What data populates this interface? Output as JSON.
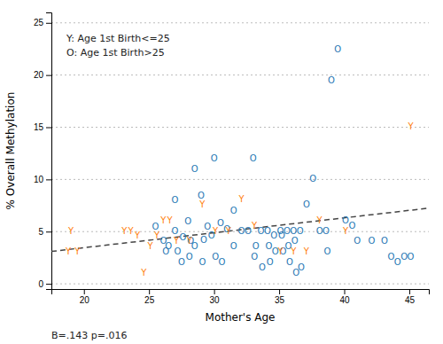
{
  "chart_data": {
    "type": "scatter",
    "xlabel": "Mother's Age",
    "ylabel": "% Overall Methylation",
    "xlim": [
      17.5,
      46.5
    ],
    "ylim": [
      -0.5,
      26
    ],
    "xticks": [
      20,
      25,
      30,
      35,
      40,
      45
    ],
    "yticks": [
      0,
      5,
      10,
      15,
      20,
      25
    ],
    "grid": true,
    "annotations": [
      "Y: Age 1st Birth<=25",
      "O: Age 1st Birth>25",
      "B=.143 p=.016"
    ],
    "regression": {
      "intercept": 0.6,
      "slope": 0.143,
      "line_style": "dashed"
    },
    "series": [
      {
        "marker": "O",
        "x": [
          27.0,
          28.5,
          29.0,
          29.5,
          28.0,
          30.0,
          31.5,
          31.0,
          30.5,
          29.2,
          29.8,
          28.5,
          28.2,
          27.6,
          27.0,
          26.5,
          26.1,
          26.3,
          25.5,
          27.2,
          27.5,
          28.1,
          29.1,
          30.1,
          30.6,
          31.5,
          32.1,
          32.6,
          33.0,
          33.6,
          34.1,
          34.6,
          34.2,
          33.2,
          33.1,
          33.7,
          34.3,
          35.1,
          35.6,
          35.2,
          34.7,
          35.3,
          35.7,
          36.1,
          36.6,
          36.2,
          35.8,
          36.3,
          36.7,
          37.1,
          37.6,
          38.1,
          38.6,
          38.7,
          39.0,
          39.5,
          40.1,
          40.6,
          41.0,
          42.1,
          43.1,
          43.6,
          44.1,
          44.6,
          45.1
        ],
        "values": [
          8.0,
          11.0,
          8.5,
          5.5,
          6.0,
          12.0,
          7.0,
          5.2,
          5.8,
          4.2,
          4.6,
          3.6,
          4.1,
          4.5,
          5.1,
          3.6,
          4.1,
          3.1,
          5.5,
          3.1,
          2.1,
          2.6,
          2.1,
          2.6,
          2.1,
          3.6,
          5.1,
          5.1,
          12.0,
          5.1,
          5.1,
          4.6,
          3.6,
          3.6,
          2.6,
          1.6,
          2.1,
          5.1,
          5.1,
          4.6,
          3.1,
          3.1,
          3.6,
          5.1,
          5.1,
          4.1,
          2.1,
          1.1,
          1.6,
          7.6,
          10.1,
          5.1,
          5.1,
          3.1,
          19.5,
          22.5,
          6.1,
          5.6,
          4.1,
          4.1,
          4.1,
          2.6,
          2.1,
          2.6,
          2.6
        ]
      },
      {
        "marker": "Y",
        "x": [
          19.0,
          19.5,
          18.8,
          23.1,
          23.6,
          24.1,
          24.6,
          25.1,
          25.6,
          26.1,
          26.6,
          27.1,
          28.1,
          29.1,
          30.1,
          31.1,
          32.1,
          33.1,
          35.1,
          36.1,
          37.1,
          38.1,
          40.1,
          45.1
        ],
        "values": [
          5.1,
          3.1,
          3.1,
          5.1,
          5.1,
          4.6,
          1.1,
          3.6,
          4.6,
          6.1,
          6.1,
          4.1,
          4.1,
          7.6,
          5.1,
          5.1,
          8.1,
          5.6,
          3.1,
          3.1,
          3.1,
          6.1,
          5.1,
          15.1
        ]
      }
    ]
  }
}
